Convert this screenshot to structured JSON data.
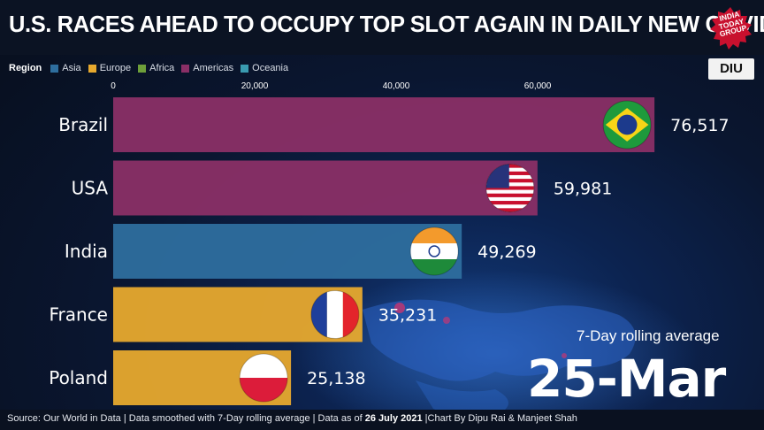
{
  "header": {
    "title": "U.S. RACES AHEAD TO OCCUPY TOP SLOT AGAIN IN DAILY NEW COVID CASES",
    "logo": {
      "line1": "INDIA",
      "line2": "TODAY",
      "line3": "GROUP"
    },
    "badge": {
      "text": "DIU",
      "dot": "I"
    }
  },
  "legend": {
    "title": "Region",
    "items": [
      {
        "label": "Asia",
        "color": "#2e6e9e"
      },
      {
        "label": "Europe",
        "color": "#e7a92e"
      },
      {
        "label": "Africa",
        "color": "#6e9f3a"
      },
      {
        "label": "Americas",
        "color": "#8a2f66"
      },
      {
        "label": "Oceania",
        "color": "#3a9bb0"
      }
    ]
  },
  "chart_data": {
    "type": "bar",
    "orientation": "horizontal",
    "title": "U.S. RACES AHEAD TO OCCUPY TOP SLOT AGAIN IN DAILY NEW COVID CASES",
    "subtitle": "7-Day rolling average",
    "date_label": "25-Mar",
    "xlim": [
      0,
      80000
    ],
    "xticks": [
      0,
      20000,
      40000,
      60000
    ],
    "xtick_labels": [
      "0",
      "20,000",
      "40,000",
      "60,000"
    ],
    "categories": [
      "Brazil",
      "USA",
      "India",
      "France",
      "Poland"
    ],
    "values": [
      76517,
      59981,
      49269,
      35231,
      25138
    ],
    "value_labels": [
      "76,517",
      "59,981",
      "49,269",
      "35,231",
      "25,138"
    ],
    "regions": [
      "Americas",
      "Americas",
      "Asia",
      "Europe",
      "Europe"
    ],
    "flags": [
      "brazil-flag",
      "usa-flag",
      "india-flag",
      "france-flag",
      "poland-flag"
    ]
  },
  "footer": {
    "source": "Source: Our World in Data | Data smoothed with 7-Day rolling average | Data as of ",
    "date": "26 July 2021",
    "credit": " |Chart By Dipu Rai & Manjeet Shah"
  }
}
